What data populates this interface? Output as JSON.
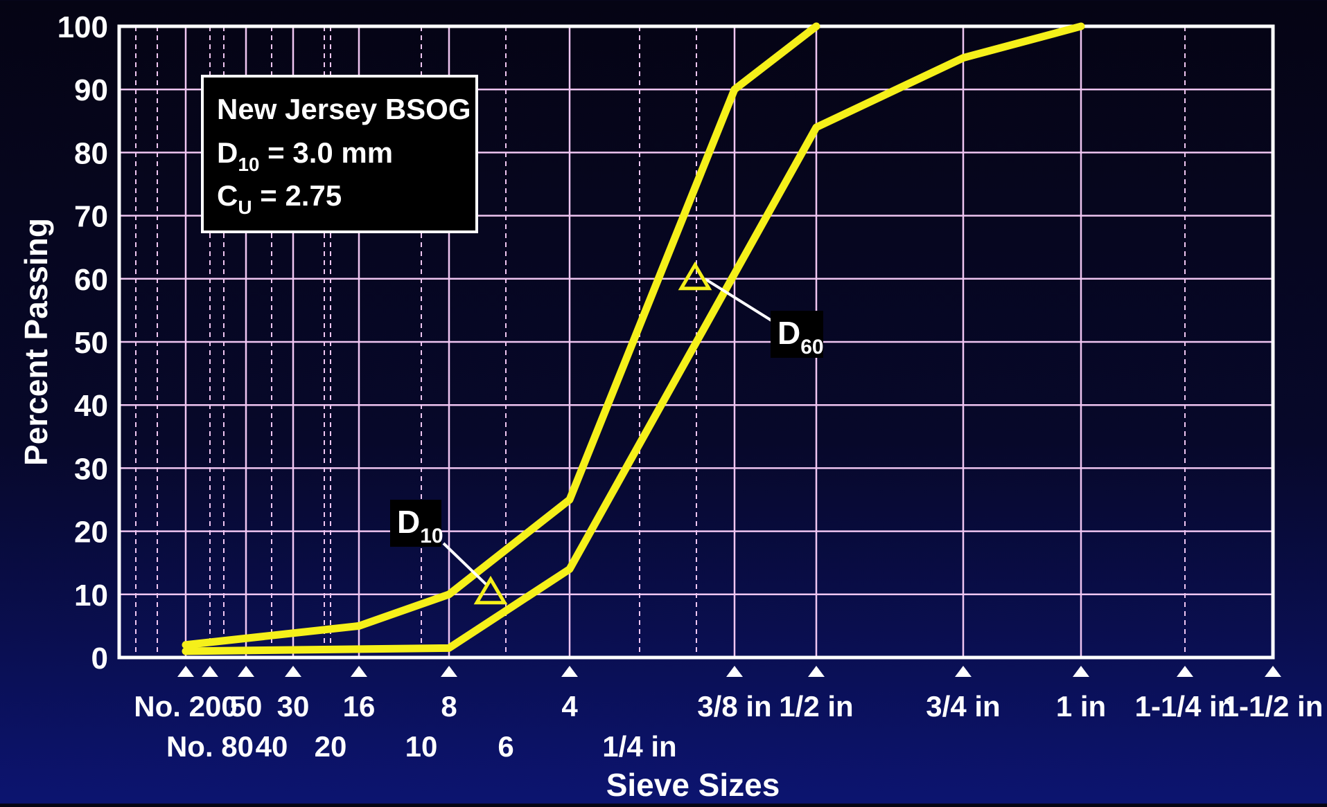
{
  "colors": {
    "background_top": "#050414",
    "background_bottom": "#0c1470",
    "frame": "#ffffff",
    "grid": "#f0c6f2",
    "curve": "#f5f01a",
    "text": "#ffffff",
    "annotation": "#ffffff"
  },
  "chart_data": {
    "type": "line",
    "title": "",
    "xlabel": "Sieve Sizes",
    "ylabel": "Percent Passing",
    "ylim": [
      0,
      100
    ],
    "y_ticks": [
      "0",
      "10",
      "20",
      "30",
      "40",
      "50",
      "60",
      "70",
      "80",
      "90",
      "100"
    ],
    "grid": true,
    "x_axis_note": "sieve scale; positions follow the printed sieve marks",
    "x_ticks": [
      {
        "label": "No. 200",
        "row": 1,
        "marker": true
      },
      {
        "label": "No. 80",
        "row": 2,
        "marker": true
      },
      {
        "label": "50",
        "row": 1,
        "marker": true
      },
      {
        "label": "40",
        "row": 2,
        "marker": false
      },
      {
        "label": "30",
        "row": 1,
        "marker": true
      },
      {
        "label": "20",
        "row": 2,
        "marker": false
      },
      {
        "label": "16",
        "row": 1,
        "marker": true
      },
      {
        "label": "10",
        "row": 2,
        "marker": false
      },
      {
        "label": "8",
        "row": 1,
        "marker": true
      },
      {
        "label": "6",
        "row": 2,
        "marker": false
      },
      {
        "label": "4",
        "row": 1,
        "marker": true
      },
      {
        "label": "1/4 in",
        "row": 2,
        "marker": false
      },
      {
        "label": "3/8 in",
        "row": 1,
        "marker": true
      },
      {
        "label": "1/2 in",
        "row": 1,
        "marker": true
      },
      {
        "label": "3/4 in",
        "row": 1,
        "marker": true
      },
      {
        "label": "1 in",
        "row": 1,
        "marker": true
      },
      {
        "label": "1-1/4 in",
        "row": 1,
        "marker": true
      },
      {
        "label": "1-1/2 in",
        "row": 1,
        "marker": true
      }
    ],
    "series": [
      {
        "points": [
          {
            "x": "No. 200",
            "y": 2
          },
          {
            "x": "16",
            "y": 5
          },
          {
            "x": "8",
            "y": 10
          },
          {
            "x": "4",
            "y": 25
          },
          {
            "x": "3/8 in",
            "y": 90
          },
          {
            "x": "1/2 in",
            "y": 100
          }
        ]
      },
      {
        "points": [
          {
            "x": "No. 200",
            "y": 1
          },
          {
            "x": "8",
            "y": 1.5
          },
          {
            "x": "4",
            "y": 14
          },
          {
            "x": "1/2 in",
            "y": 84
          },
          {
            "x": "3/4 in",
            "y": 95
          },
          {
            "x": "1 in",
            "y": 100
          }
        ]
      }
    ],
    "legend": {
      "placement": "top-left",
      "title": "New Jersey BSOG",
      "d10": {
        "main": "D",
        "sub": "10",
        "rest": " = 3.0 mm"
      },
      "cu": {
        "main": "C",
        "sub": "U",
        "rest": " = 2.75"
      }
    },
    "annotations": [
      {
        "id": "d10",
        "main": "D",
        "sub": "10",
        "x": "6",
        "y": 10
      },
      {
        "id": "d60",
        "main": "D",
        "sub": "60",
        "x": "3/8 in",
        "y": 60
      }
    ]
  }
}
